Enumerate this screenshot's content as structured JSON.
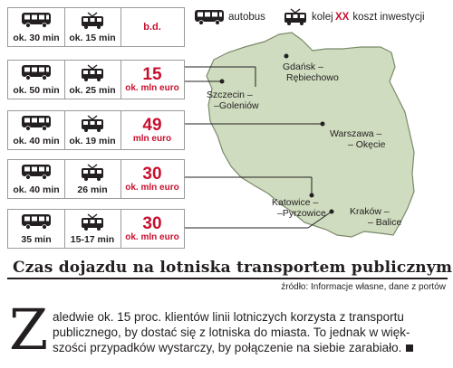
{
  "legend": {
    "bus_label": "autobus",
    "rail_label": "kolej",
    "cost_symbol": "XX",
    "cost_label": "koszt inwestycji"
  },
  "routes": [
    {
      "bus_time": "ok. 30 min",
      "rail_time": "ok. 15 min",
      "cost_value": "",
      "cost_unit": "",
      "cost_text": "b.d."
    },
    {
      "bus_time": "ok. 50 min",
      "rail_time": "ok. 25 min",
      "cost_value": "15",
      "cost_unit": "ok. mln euro",
      "cost_text": ""
    },
    {
      "bus_time": "ok. 40 min",
      "rail_time": "ok. 19 min",
      "cost_value": "49",
      "cost_unit": "mln euro",
      "cost_text": ""
    },
    {
      "bus_time": "ok. 40 min",
      "rail_time": "26 min",
      "cost_value": "30",
      "cost_unit": "ok. mln euro",
      "cost_text": ""
    },
    {
      "bus_time": "35 min",
      "rail_time": "15-17 min",
      "cost_value": "30",
      "cost_unit": "ok. mln euro",
      "cost_text": ""
    }
  ],
  "cities": [
    {
      "line1": "Gdańsk –",
      "line2": "Rębiechowo"
    },
    {
      "line1": "Szczecin –",
      "line2": "–Goleniów"
    },
    {
      "line1": "Warszawa –",
      "line2": "– Okęcie"
    },
    {
      "line1": "Katowice –",
      "line2": "–Pyrzowice"
    },
    {
      "line1": "Kraków –",
      "line2": "– Balice"
    }
  ],
  "title": "Czas dojazdu na lotniska transportem publicznym",
  "source": "źródło: Informacje własne, dane z portów",
  "article": {
    "dropcap": "Z",
    "line1": "aledwie ok. 15 proc. klientów linii lotniczych korzysta z transportu",
    "line2": "publicznego, by dostać się z lotniska do miasta. To jednak w więk-",
    "line3": "szości przypadków wystarczy, by połączenie na siebie zarabiało."
  },
  "colors": {
    "map_fill": "#cfdcbf",
    "map_stroke": "#7b8a6a",
    "accent": "#c8102e",
    "text": "#231f20"
  },
  "icons": {
    "bus": "bus-icon",
    "rail": "train-icon"
  }
}
